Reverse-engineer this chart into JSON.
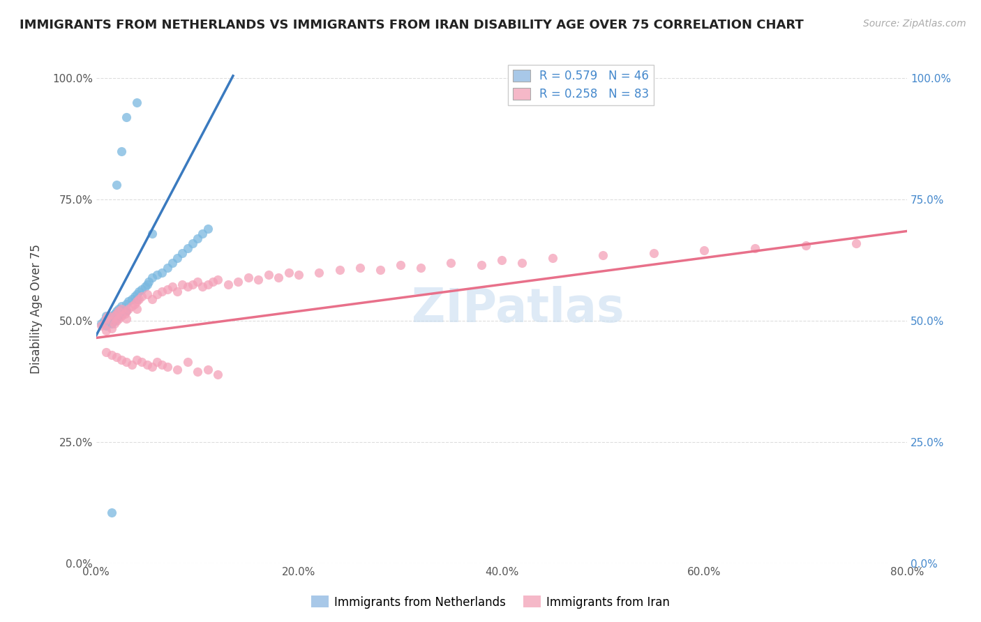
{
  "title": "IMMIGRANTS FROM NETHERLANDS VS IMMIGRANTS FROM IRAN DISABILITY AGE OVER 75 CORRELATION CHART",
  "source": "Source: ZipAtlas.com",
  "ylabel": "Disability Age Over 75",
  "xlim": [
    0.0,
    0.8
  ],
  "ylim": [
    0.0,
    1.05
  ],
  "x_tick_vals": [
    0.0,
    0.2,
    0.4,
    0.6,
    0.8
  ],
  "x_tick_labels": [
    "0.0%",
    "20.0%",
    "40.0%",
    "60.0%",
    "80.0%"
  ],
  "y_tick_vals": [
    0.0,
    0.25,
    0.5,
    0.75,
    1.0
  ],
  "y_tick_labels_left": [
    "0.0%",
    "25.0%",
    "50.0%",
    "75.0%",
    "100.0%"
  ],
  "y_tick_labels_right": [
    "0.0%",
    "25.0%",
    "50.0%",
    "75.0%",
    "100.0%"
  ],
  "legend_box_color_nl": "#a8c8e8",
  "legend_box_color_iran": "#f5b8c8",
  "nl_color": "#7ab8e0",
  "iran_color": "#f4a0b8",
  "nl_line_color": "#3a7abf",
  "iran_line_color": "#e8708a",
  "R_nl": 0.579,
  "N_nl": 46,
  "R_iran": 0.258,
  "N_iran": 83,
  "nl_line_x": [
    0.0,
    0.135
  ],
  "nl_line_y": [
    0.47,
    1.005
  ],
  "iran_line_x": [
    0.0,
    0.8
  ],
  "iran_line_y": [
    0.465,
    0.685
  ],
  "nl_scatter_x": [
    0.005,
    0.008,
    0.01,
    0.01,
    0.012,
    0.015,
    0.015,
    0.018,
    0.018,
    0.02,
    0.02,
    0.022,
    0.022,
    0.025,
    0.025,
    0.028,
    0.03,
    0.03,
    0.032,
    0.035,
    0.038,
    0.04,
    0.04,
    0.042,
    0.045,
    0.048,
    0.05,
    0.052,
    0.055,
    0.06,
    0.065,
    0.07,
    0.075,
    0.08,
    0.085,
    0.09,
    0.095,
    0.1,
    0.105,
    0.11,
    0.02,
    0.025,
    0.03,
    0.04,
    0.055,
    0.015
  ],
  "nl_scatter_y": [
    0.495,
    0.5,
    0.51,
    0.49,
    0.505,
    0.51,
    0.495,
    0.515,
    0.5,
    0.52,
    0.505,
    0.525,
    0.51,
    0.53,
    0.515,
    0.52,
    0.535,
    0.52,
    0.54,
    0.545,
    0.55,
    0.555,
    0.545,
    0.56,
    0.565,
    0.57,
    0.575,
    0.58,
    0.59,
    0.595,
    0.6,
    0.61,
    0.62,
    0.63,
    0.64,
    0.65,
    0.66,
    0.67,
    0.68,
    0.69,
    0.78,
    0.85,
    0.92,
    0.95,
    0.68,
    0.105
  ],
  "iran_scatter_x": [
    0.005,
    0.008,
    0.01,
    0.01,
    0.012,
    0.015,
    0.015,
    0.018,
    0.018,
    0.02,
    0.02,
    0.022,
    0.022,
    0.025,
    0.025,
    0.028,
    0.03,
    0.03,
    0.032,
    0.035,
    0.038,
    0.04,
    0.04,
    0.042,
    0.045,
    0.05,
    0.055,
    0.06,
    0.065,
    0.07,
    0.075,
    0.08,
    0.085,
    0.09,
    0.095,
    0.1,
    0.105,
    0.11,
    0.115,
    0.12,
    0.13,
    0.14,
    0.15,
    0.16,
    0.17,
    0.18,
    0.19,
    0.2,
    0.22,
    0.24,
    0.26,
    0.28,
    0.3,
    0.32,
    0.35,
    0.38,
    0.4,
    0.42,
    0.45,
    0.5,
    0.55,
    0.6,
    0.65,
    0.7,
    0.75,
    0.01,
    0.015,
    0.02,
    0.025,
    0.03,
    0.035,
    0.04,
    0.045,
    0.05,
    0.055,
    0.06,
    0.065,
    0.07,
    0.08,
    0.09,
    0.1,
    0.11,
    0.12
  ],
  "iran_scatter_y": [
    0.49,
    0.495,
    0.505,
    0.48,
    0.51,
    0.5,
    0.485,
    0.51,
    0.495,
    0.515,
    0.5,
    0.52,
    0.505,
    0.525,
    0.51,
    0.515,
    0.52,
    0.505,
    0.525,
    0.53,
    0.535,
    0.54,
    0.525,
    0.545,
    0.55,
    0.555,
    0.545,
    0.555,
    0.56,
    0.565,
    0.57,
    0.56,
    0.575,
    0.57,
    0.575,
    0.58,
    0.57,
    0.575,
    0.58,
    0.585,
    0.575,
    0.58,
    0.59,
    0.585,
    0.595,
    0.59,
    0.6,
    0.595,
    0.6,
    0.605,
    0.61,
    0.605,
    0.615,
    0.61,
    0.62,
    0.615,
    0.625,
    0.62,
    0.63,
    0.635,
    0.64,
    0.645,
    0.65,
    0.655,
    0.66,
    0.435,
    0.43,
    0.425,
    0.42,
    0.415,
    0.41,
    0.42,
    0.415,
    0.41,
    0.405,
    0.415,
    0.41,
    0.405,
    0.4,
    0.415,
    0.395,
    0.4,
    0.39
  ],
  "watermark_text": "ZIPatlas",
  "background_color": "#ffffff",
  "grid_color": "#dddddd",
  "legend_label_nl": "Immigrants from Netherlands",
  "legend_label_iran": "Immigrants from Iran",
  "title_fontsize": 13,
  "source_fontsize": 10,
  "axis_label_fontsize": 12,
  "tick_fontsize": 11,
  "legend_fontsize": 12,
  "ylabel_fontsize": 12
}
